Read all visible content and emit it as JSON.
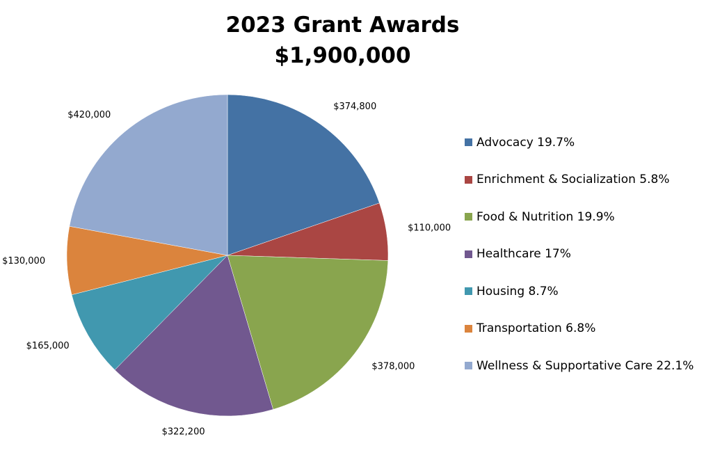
{
  "chart_data": {
    "type": "pie",
    "title": "2023 Grant Awards",
    "subtitle": "$1,900,000",
    "categories": [
      "Advocacy",
      "Enrichment & Socialization",
      "Food & Nutrition",
      "Healthcare",
      "Housing",
      "Transportation",
      "Wellness & Supportative Care"
    ],
    "values": [
      374800,
      110000,
      378000,
      322200,
      165000,
      130000,
      420000
    ],
    "value_labels": [
      "$374,800",
      "$110,000",
      "$378,000",
      "$322,200",
      "$165,000",
      "$130,000",
      "$420,000"
    ],
    "legend_labels": [
      "Advocacy 19.7%",
      "Enrichment & Socialization 5.8%",
      "Food & Nutrition 19.9%",
      "Healthcare 17%",
      "Housing 8.7%",
      "Transportation 6.8%",
      "Wellness & Supportative Care 22.1%"
    ],
    "colors": [
      "#4472A4",
      "#AA4643",
      "#89A54E",
      "#71588F",
      "#4198AF",
      "#DB843D",
      "#93A9CF"
    ],
    "legend_position": "right",
    "start": "12 o'clock",
    "direction": "clockwise"
  }
}
